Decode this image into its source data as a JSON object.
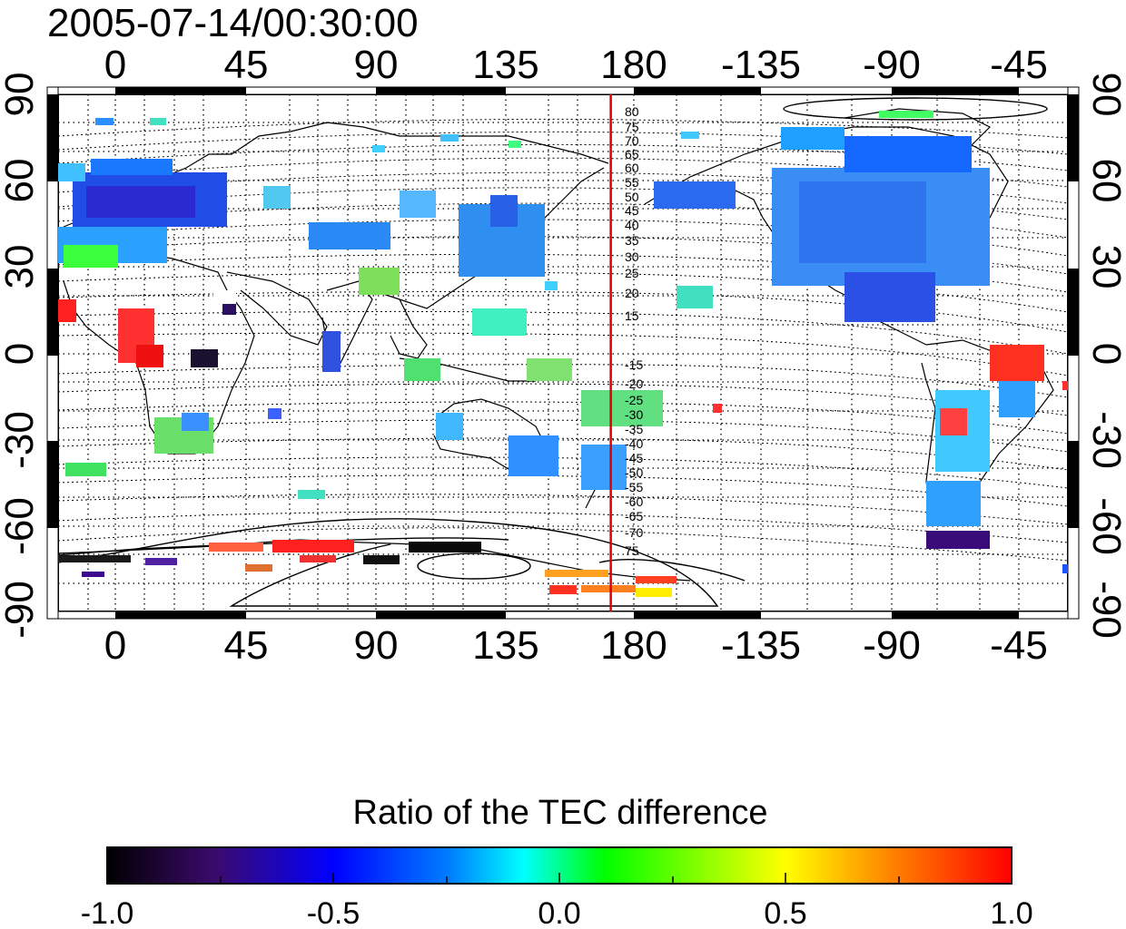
{
  "title": "2005-07-14/00:30:00",
  "top_lon_ticks": [
    "0",
    "45",
    "90",
    "135",
    "180",
    "-135",
    "-90",
    "-45"
  ],
  "bottom_lon_ticks": [
    "0",
    "45",
    "90",
    "135",
    "180",
    "-135",
    "-90",
    "-45"
  ],
  "left_lat_ticks": [
    "90",
    "60",
    "30",
    "0",
    "-30",
    "-60",
    "-90"
  ],
  "right_lat_ticks": [
    "90",
    "60",
    "30",
    "0",
    "-30",
    "-60",
    "-90"
  ],
  "contour_labels_north": [
    "80",
    "75",
    "70",
    "65",
    "60",
    "55",
    "50",
    "45",
    "40",
    "35",
    "30",
    "25",
    "20",
    "15"
  ],
  "contour_labels_south": [
    "-15",
    "-20",
    "-25",
    "-30",
    "-35",
    "-40",
    "-45",
    "-50",
    "-55",
    "-60",
    "-65",
    "-70",
    "75"
  ],
  "meridian_marker_lon": 172,
  "colorbar": {
    "title": "Ratio of the TEC difference",
    "ticks": [
      "-1.0",
      "-0.5",
      "0.0",
      "0.5",
      "1.0"
    ],
    "range": [
      -1.0,
      1.0
    ],
    "stops": [
      "#000000",
      "#3b0a6e",
      "#0000ff",
      "#00ffff",
      "#00ff00",
      "#ffff00",
      "#ff0000"
    ]
  },
  "colors": {
    "marker_line": "#e00000",
    "grid": "#000000"
  }
}
